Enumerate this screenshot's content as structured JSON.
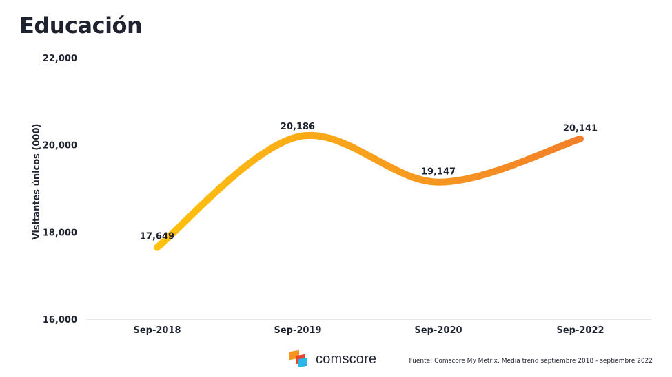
{
  "title": "Educación",
  "source_note": "Fuente: Comscore My Metrix. Media trend septiembre 2018 - septiembre 2022",
  "logo": {
    "text": "comscore",
    "icon": "comscore-logo-icon"
  },
  "colors": {
    "line_start": "#ffc20e",
    "line_end": "#f27f2a",
    "axis": "#d0d0d0",
    "text": "#1f2330"
  },
  "chart_data": {
    "type": "line",
    "title": "Educación",
    "xlabel": "",
    "ylabel": "Visitantes únicos (000)",
    "categories": [
      "Sep-2018",
      "Sep-2019",
      "Sep-2020",
      "Sep-2022"
    ],
    "series": [
      {
        "values": [
          17649,
          20186,
          19147,
          20141
        ],
        "labels": [
          "17,649",
          "20,186",
          "19,147",
          "20,141"
        ]
      }
    ],
    "ylim": [
      16000,
      22000
    ],
    "yticks": [
      16000,
      18000,
      20000,
      22000
    ],
    "ytick_labels": [
      "16,000",
      "18,000",
      "20,000",
      "22,000"
    ],
    "grid": false,
    "legend": "none",
    "smooth": true
  }
}
